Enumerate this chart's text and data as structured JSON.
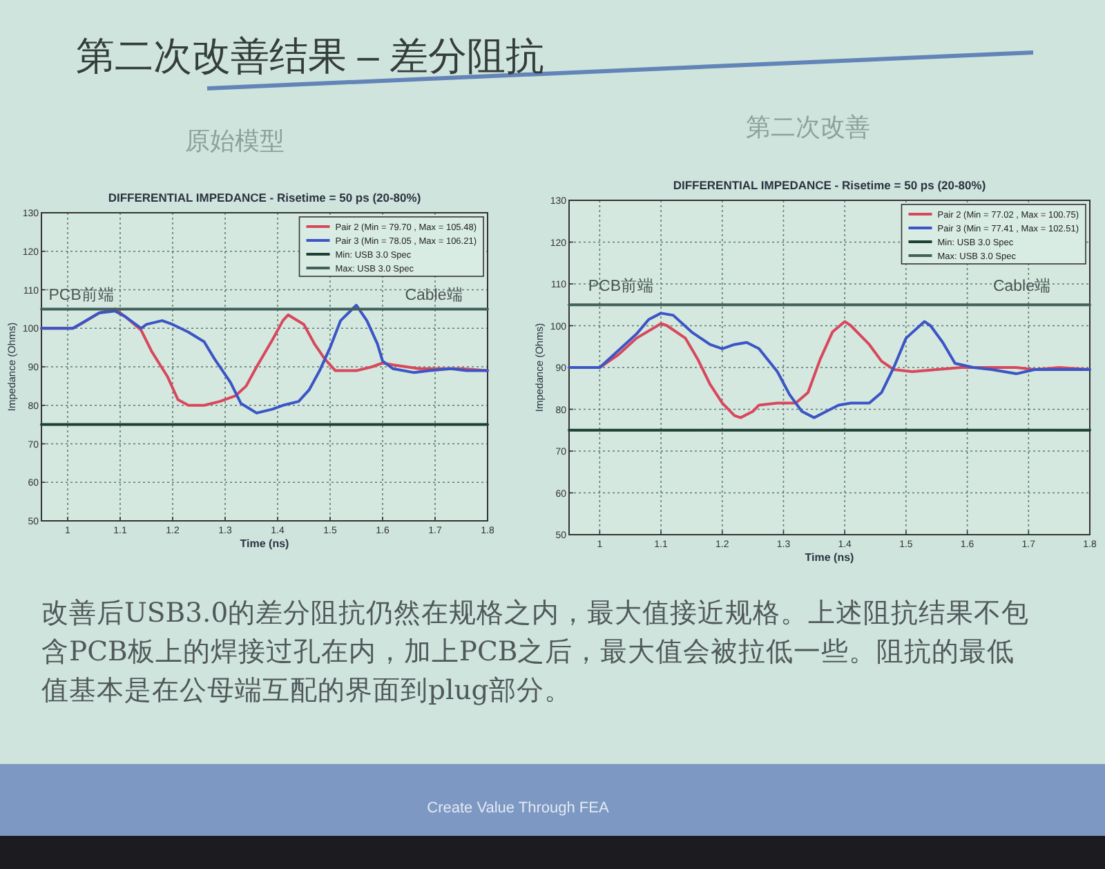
{
  "chart_data": [
    {
      "type": "other",
      "title": "第二次改善结果 – 差分阻抗"
    },
    {
      "type": "line",
      "title": "原始模型",
      "subtitle": "DIFFERENTIAL IMPEDANCE - Risetime = 50 ps (20-80%)",
      "xlabel": "Time (ns)",
      "ylabel": "Impedance (Ohms)",
      "xlim": [
        0.95,
        1.8
      ],
      "ylim": [
        50,
        130
      ],
      "xticks": [
        1,
        1.1,
        1.2,
        1.3,
        1.4,
        1.5,
        1.6,
        1.7,
        1.8
      ],
      "yticks": [
        50,
        60,
        70,
        80,
        90,
        100,
        110,
        120,
        130
      ],
      "grid": true,
      "legend": "top right",
      "series": [
        {
          "name": "Pair 2 (Min = 79.70 , Max = 105.48)",
          "color": "#d8485c",
          "x": [
            0.95,
            1.01,
            1.03,
            1.06,
            1.09,
            1.11,
            1.14,
            1.16,
            1.19,
            1.21,
            1.23,
            1.26,
            1.29,
            1.32,
            1.34,
            1.36,
            1.39,
            1.41,
            1.42,
            1.45,
            1.47,
            1.49,
            1.51,
            1.55,
            1.58,
            1.6,
            1.62,
            1.67,
            1.7,
            1.75,
            1.8
          ],
          "values": [
            100,
            100,
            101.5,
            104,
            105,
            103,
            99.5,
            94,
            87.5,
            81.5,
            80,
            80,
            81,
            82.5,
            85,
            90,
            97,
            102,
            103.5,
            101,
            96,
            92,
            89,
            89,
            90,
            91,
            90.5,
            89.5,
            89.5,
            89.5,
            89
          ]
        },
        {
          "name": "Pair 3 (Min = 78.05 , Max = 106.21)",
          "color": "#3b55c4",
          "x": [
            0.95,
            1.01,
            1.06,
            1.09,
            1.11,
            1.14,
            1.15,
            1.18,
            1.2,
            1.23,
            1.26,
            1.28,
            1.31,
            1.33,
            1.36,
            1.39,
            1.41,
            1.44,
            1.46,
            1.48,
            1.5,
            1.52,
            1.55,
            1.57,
            1.59,
            1.6,
            1.62,
            1.66,
            1.69,
            1.73,
            1.76,
            1.8
          ],
          "values": [
            100,
            100,
            104,
            104.5,
            103,
            100,
            101,
            102,
            101,
            99,
            96.5,
            92,
            86,
            80.5,
            78,
            79,
            80,
            81,
            84,
            89,
            95,
            102,
            106,
            102,
            96,
            91.5,
            89.5,
            88.5,
            89,
            89.5,
            89,
            89
          ]
        },
        {
          "name": "Min: USB 3.0 Spec",
          "color": "#1e4034",
          "x": [
            0.95,
            1.8
          ],
          "values": [
            75,
            75
          ]
        },
        {
          "name": "Max: USB 3.0 Spec",
          "color": "#41615a",
          "x": [
            0.95,
            1.8
          ],
          "values": [
            105,
            105
          ]
        }
      ],
      "annotations": [
        "PCB前端",
        "Cable端"
      ]
    },
    {
      "type": "line",
      "title": "第二次改善",
      "subtitle": "DIFFERENTIAL IMPEDANCE - Risetime = 50 ps (20-80%)",
      "xlabel": "Time (ns)",
      "ylabel": "Impedance (Ohms)",
      "xlim": [
        0.95,
        1.8
      ],
      "ylim": [
        50,
        130
      ],
      "xticks": [
        1,
        1.1,
        1.2,
        1.3,
        1.4,
        1.5,
        1.6,
        1.7,
        1.8
      ],
      "yticks": [
        50,
        60,
        70,
        80,
        90,
        100,
        110,
        120,
        130
      ],
      "grid": true,
      "legend": "top right",
      "series": [
        {
          "name": "Pair 2 (Min = 77.02 , Max = 100.75)",
          "color": "#d8485c",
          "x": [
            0.95,
            1.0,
            1.03,
            1.06,
            1.1,
            1.11,
            1.14,
            1.16,
            1.18,
            1.2,
            1.22,
            1.23,
            1.25,
            1.26,
            1.29,
            1.32,
            1.34,
            1.36,
            1.38,
            1.4,
            1.41,
            1.44,
            1.46,
            1.48,
            1.51,
            1.55,
            1.59,
            1.64,
            1.68,
            1.71,
            1.75,
            1.8
          ],
          "values": [
            90,
            90,
            93,
            97,
            100.5,
            100,
            97,
            92,
            86,
            81.5,
            78.5,
            78,
            79.5,
            81,
            81.5,
            81.5,
            84,
            92,
            98.5,
            101,
            100,
            95.5,
            91.5,
            89.5,
            89,
            89.5,
            90,
            90,
            90,
            89.5,
            90,
            89.5
          ]
        },
        {
          "name": "Pair 3 (Min = 77.41 , Max = 102.51)",
          "color": "#3b55c4",
          "x": [
            0.95,
            1.0,
            1.06,
            1.08,
            1.1,
            1.12,
            1.15,
            1.18,
            1.2,
            1.22,
            1.24,
            1.26,
            1.29,
            1.31,
            1.33,
            1.35,
            1.37,
            1.39,
            1.41,
            1.44,
            1.46,
            1.48,
            1.5,
            1.53,
            1.54,
            1.56,
            1.58,
            1.61,
            1.64,
            1.68,
            1.71,
            1.75,
            1.8
          ],
          "values": [
            90,
            90,
            98,
            101.5,
            103,
            102.5,
            98.5,
            95.5,
            94.5,
            95.5,
            96,
            94.5,
            89,
            83.5,
            79.5,
            78,
            79.5,
            81,
            81.5,
            81.5,
            84,
            90,
            97,
            101,
            100,
            96,
            91,
            90,
            89.5,
            88.5,
            89.5,
            89.5,
            89.5
          ]
        },
        {
          "name": "Min: USB 3.0 Spec",
          "color": "#1e4034",
          "x": [
            0.95,
            1.8
          ],
          "values": [
            75,
            75
          ]
        },
        {
          "name": "Max: USB 3.0 Spec",
          "color": "#41615a",
          "x": [
            0.95,
            1.8
          ],
          "values": [
            105,
            105
          ]
        }
      ],
      "annotations": [
        "PCB前端",
        "Cable端"
      ]
    },
    {
      "type": "other",
      "annotations": [
        "改善后USB3.0的差分阻抗仍然在规格之内，最大值接近规格。上述阻抗结果不包含PCB板上的焊接过孔在内，加上PCB之后，最大值会被拉低一些。阻抗的最低值基本是在公母端互配的界面到plug部分。",
        "Create Value Through FEA"
      ]
    }
  ]
}
